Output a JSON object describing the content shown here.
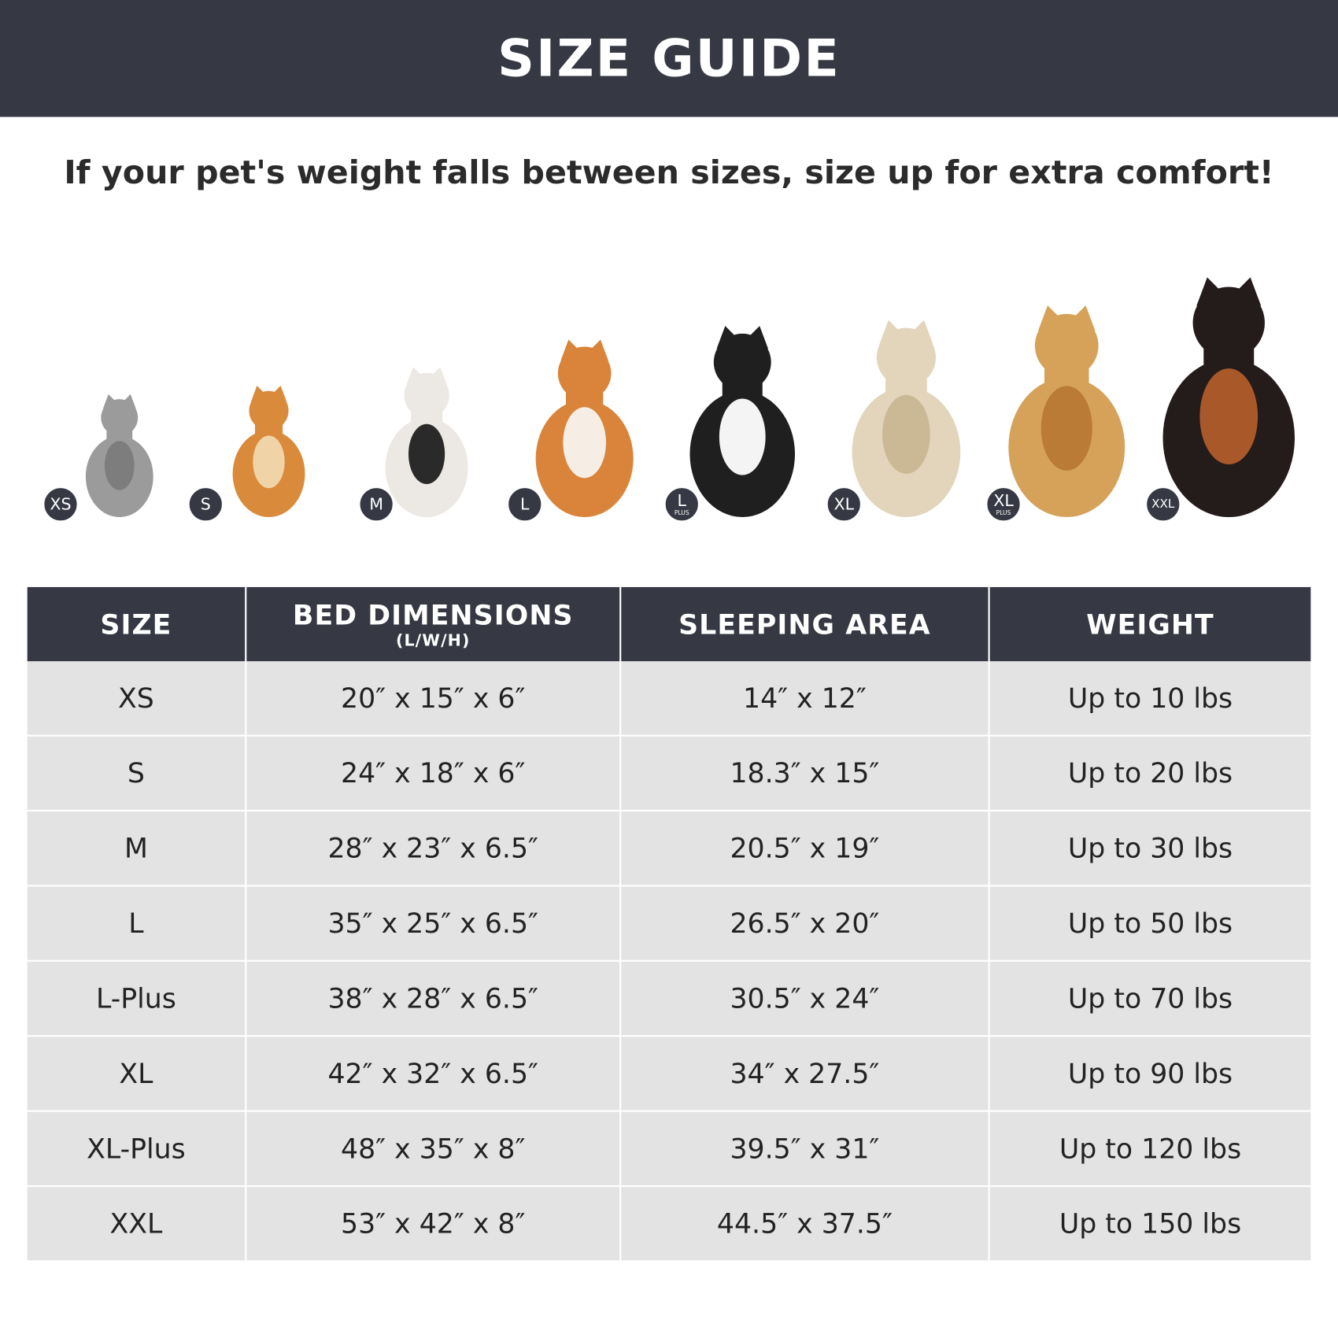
{
  "header": {
    "title": "SIZE GUIDE"
  },
  "subtitle": "If your pet's weight falls between sizes, size up for extra comfort!",
  "pets": [
    {
      "badge": "XS",
      "plus": "",
      "animal": "cat",
      "color": "#9b9b9b",
      "accent": "#7d7d7d"
    },
    {
      "badge": "S",
      "plus": "",
      "animal": "pomeranian",
      "color": "#d98a3a",
      "accent": "#f1d3a8"
    },
    {
      "badge": "M",
      "plus": "",
      "animal": "french-bulldog",
      "color": "#ece8e3",
      "accent": "#2a2a2a"
    },
    {
      "badge": "L",
      "plus": "",
      "animal": "shiba-inu",
      "color": "#d9843a",
      "accent": "#f6eee5"
    },
    {
      "badge": "L",
      "plus": "PLUS",
      "animal": "border-collie",
      "color": "#1f1f1f",
      "accent": "#f4f4f4"
    },
    {
      "badge": "XL",
      "plus": "",
      "animal": "labrador",
      "color": "#e2d5bc",
      "accent": "#cbb894"
    },
    {
      "badge": "XL",
      "plus": "PLUS",
      "animal": "golden-retriever",
      "color": "#d6a25a",
      "accent": "#b97b35"
    },
    {
      "badge": "XXL",
      "plus": "",
      "animal": "doberman",
      "color": "#241c1a",
      "accent": "#a9582a"
    }
  ],
  "table": {
    "headers": [
      {
        "label": "SIZE",
        "sub": ""
      },
      {
        "label": "BED DIMENSIONS",
        "sub": "(L/W/H)"
      },
      {
        "label": "SLEEPING AREA",
        "sub": ""
      },
      {
        "label": "WEIGHT",
        "sub": ""
      }
    ],
    "rows": [
      [
        "XS",
        "20″ x 15″ x 6″",
        "14″ x 12″",
        "Up to 10 lbs"
      ],
      [
        "S",
        "24″ x 18″ x 6″",
        "18.3″ x 15″",
        "Up to 20 lbs"
      ],
      [
        "M",
        "28″ x 23″ x 6.5″",
        "20.5″ x 19″",
        "Up to 30 lbs"
      ],
      [
        "L",
        "35″ x 25″ x 6.5″",
        "26.5″ x 20″",
        "Up to 50 lbs"
      ],
      [
        "L-Plus",
        "38″ x 28″ x 6.5″",
        "30.5″ x 24″",
        "Up to 70 lbs"
      ],
      [
        "XL",
        "42″ x 32″ x 6.5″",
        "34″ x 27.5″",
        "Up to 90 lbs"
      ],
      [
        "XL-Plus",
        "48″ x 35″ x 8″",
        "39.5″ x 31″",
        "Up to 120 lbs"
      ],
      [
        "XXL",
        "53″ x 42″ x 8″",
        "44.5″ x 37.5″",
        "Up to 150 lbs"
      ]
    ]
  },
  "colors": {
    "banner": "#363843",
    "row": "#e3e3e3"
  }
}
